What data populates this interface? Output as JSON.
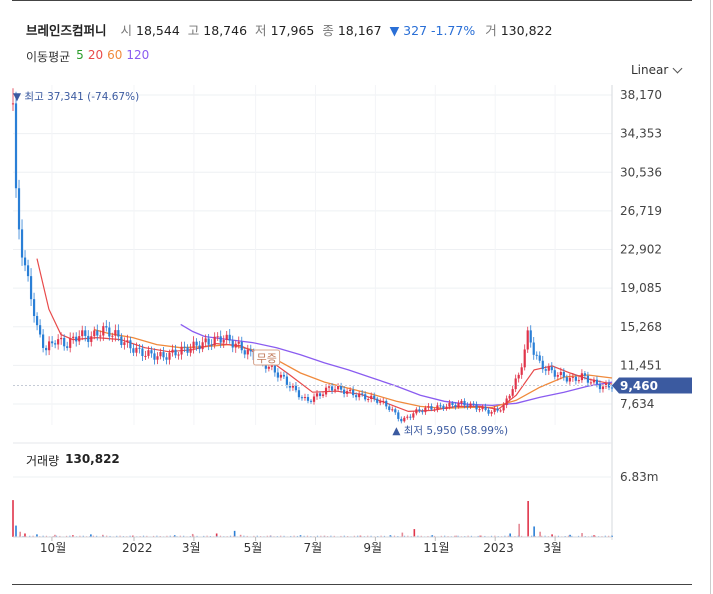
{
  "header": {
    "name": "브레인즈컴퍼니",
    "open_label": "시",
    "open": "18,544",
    "high_label": "고",
    "high": "18,746",
    "low_label": "저",
    "low": "17,965",
    "close_label": "종",
    "close": "18,167",
    "change": "▼ 327 -1.77%",
    "volume_label": "거",
    "volume": "130,822"
  },
  "moving_average": {
    "title": "이동평균",
    "periods": [
      {
        "label": "5",
        "color": "#2a9d2a"
      },
      {
        "label": "20",
        "color": "#e84a4a"
      },
      {
        "label": "60",
        "color": "#f08a3c"
      },
      {
        "label": "120",
        "color": "#8a5cf0"
      }
    ]
  },
  "scale_selector": {
    "value": "Linear",
    "icon": "chevron-down-icon"
  },
  "chart_data": {
    "type": "candlestick",
    "y_ticks": [
      "38,170",
      "34,353",
      "30,536",
      "26,719",
      "22,902",
      "19,085",
      "15,268",
      "11,451",
      "7,634"
    ],
    "y_tick_values": [
      38170,
      34353,
      30536,
      26719,
      22902,
      19085,
      15268,
      11451,
      7634
    ],
    "ylim": [
      5000,
      38170
    ],
    "x_ticks": [
      "10월",
      "2022",
      "3월",
      "5월",
      "7월",
      "9월",
      "11월",
      "2023",
      "3월"
    ],
    "x_tick_positions": [
      0.065,
      0.202,
      0.302,
      0.405,
      0.505,
      0.605,
      0.705,
      0.805,
      0.905
    ],
    "current_price": "9,460",
    "current_value": 9460,
    "high_annotation": "최고 37,341 (-74.67%)",
    "high_value": 37341,
    "low_annotation": "최저 5,950 (58.99%)",
    "low_value": 5950,
    "event_label": "무증",
    "price_series": [
      [
        0.0,
        37341
      ],
      [
        0.005,
        28000
      ],
      [
        0.012,
        24000
      ],
      [
        0.02,
        21000
      ],
      [
        0.03,
        18500
      ],
      [
        0.04,
        15000
      ],
      [
        0.055,
        13000
      ],
      [
        0.07,
        14000
      ],
      [
        0.09,
        13500
      ],
      [
        0.11,
        14500
      ],
      [
        0.13,
        14200
      ],
      [
        0.15,
        15000
      ],
      [
        0.17,
        14500
      ],
      [
        0.19,
        13500
      ],
      [
        0.21,
        12800
      ],
      [
        0.23,
        12500
      ],
      [
        0.25,
        12300
      ],
      [
        0.27,
        12700
      ],
      [
        0.29,
        13100
      ],
      [
        0.31,
        13500
      ],
      [
        0.33,
        13800
      ],
      [
        0.35,
        14200
      ],
      [
        0.37,
        13600
      ],
      [
        0.39,
        12800
      ],
      [
        0.41,
        12000
      ],
      [
        0.43,
        11200
      ],
      [
        0.45,
        10200
      ],
      [
        0.47,
        9000
      ],
      [
        0.49,
        7900
      ],
      [
        0.51,
        8500
      ],
      [
        0.53,
        9300
      ],
      [
        0.55,
        9000
      ],
      [
        0.57,
        8600
      ],
      [
        0.59,
        8300
      ],
      [
        0.61,
        8000
      ],
      [
        0.63,
        7200
      ],
      [
        0.64,
        6500
      ],
      [
        0.65,
        5950
      ],
      [
        0.67,
        6800
      ],
      [
        0.69,
        7200
      ],
      [
        0.71,
        7300
      ],
      [
        0.73,
        7500
      ],
      [
        0.75,
        7700
      ],
      [
        0.77,
        7400
      ],
      [
        0.79,
        7000
      ],
      [
        0.8,
        6800
      ],
      [
        0.82,
        7400
      ],
      [
        0.83,
        8800
      ],
      [
        0.845,
        10500
      ],
      [
        0.86,
        14600
      ],
      [
        0.87,
        12800
      ],
      [
        0.88,
        11500
      ],
      [
        0.9,
        10800
      ],
      [
        0.92,
        10300
      ],
      [
        0.935,
        10000
      ],
      [
        0.95,
        10400
      ],
      [
        0.97,
        9700
      ],
      [
        0.985,
        9300
      ],
      [
        1.0,
        9460
      ]
    ],
    "ma20": [
      [
        0.04,
        22000
      ],
      [
        0.06,
        17000
      ],
      [
        0.08,
        14500
      ],
      [
        0.1,
        14000
      ],
      [
        0.14,
        14200
      ],
      [
        0.18,
        14000
      ],
      [
        0.22,
        13200
      ],
      [
        0.26,
        12800
      ],
      [
        0.3,
        13000
      ],
      [
        0.34,
        13600
      ],
      [
        0.38,
        13400
      ],
      [
        0.42,
        12300
      ],
      [
        0.46,
        10600
      ],
      [
        0.5,
        8800
      ],
      [
        0.54,
        8900
      ],
      [
        0.58,
        8600
      ],
      [
        0.62,
        7800
      ],
      [
        0.66,
        6900
      ],
      [
        0.7,
        7000
      ],
      [
        0.74,
        7400
      ],
      [
        0.78,
        7400
      ],
      [
        0.81,
        7100
      ],
      [
        0.84,
        8500
      ],
      [
        0.87,
        11000
      ],
      [
        0.9,
        11400
      ],
      [
        0.93,
        10700
      ],
      [
        0.96,
        10100
      ],
      [
        1.0,
        9600
      ]
    ],
    "ma60": [
      [
        0.135,
        15000
      ],
      [
        0.16,
        14600
      ],
      [
        0.2,
        14200
      ],
      [
        0.24,
        13500
      ],
      [
        0.28,
        13200
      ],
      [
        0.32,
        13300
      ],
      [
        0.36,
        13500
      ],
      [
        0.4,
        13000
      ],
      [
        0.44,
        12000
      ],
      [
        0.48,
        10700
      ],
      [
        0.52,
        9800
      ],
      [
        0.56,
        9200
      ],
      [
        0.6,
        8600
      ],
      [
        0.64,
        7900
      ],
      [
        0.68,
        7400
      ],
      [
        0.72,
        7200
      ],
      [
        0.76,
        7300
      ],
      [
        0.8,
        7300
      ],
      [
        0.84,
        8000
      ],
      [
        0.88,
        9300
      ],
      [
        0.92,
        10300
      ],
      [
        0.96,
        10500
      ],
      [
        1.0,
        10200
      ]
    ],
    "ma120": [
      [
        0.28,
        15500
      ],
      [
        0.3,
        14800
      ],
      [
        0.32,
        14300
      ],
      [
        0.36,
        14000
      ],
      [
        0.4,
        13700
      ],
      [
        0.44,
        13200
      ],
      [
        0.48,
        12500
      ],
      [
        0.52,
        11700
      ],
      [
        0.56,
        11000
      ],
      [
        0.6,
        10200
      ],
      [
        0.64,
        9400
      ],
      [
        0.68,
        8500
      ],
      [
        0.72,
        7900
      ],
      [
        0.76,
        7600
      ],
      [
        0.8,
        7500
      ],
      [
        0.84,
        7700
      ],
      [
        0.88,
        8300
      ],
      [
        0.92,
        8800
      ],
      [
        0.96,
        9400
      ],
      [
        1.0,
        9800
      ]
    ],
    "volume": {
      "title": "거래량",
      "value": "130,822",
      "max_tick": "6.83m",
      "max": 6830000,
      "bars": [
        [
          0.0,
          4200000
        ],
        [
          0.005,
          1300000
        ],
        [
          0.012,
          600000
        ],
        [
          0.02,
          400000
        ],
        [
          0.04,
          300000
        ],
        [
          0.07,
          250000
        ],
        [
          0.1,
          200000
        ],
        [
          0.13,
          300000
        ],
        [
          0.15,
          250000
        ],
        [
          0.2,
          150000
        ],
        [
          0.27,
          200000
        ],
        [
          0.3,
          350000
        ],
        [
          0.34,
          400000
        ],
        [
          0.37,
          700000
        ],
        [
          0.38,
          250000
        ],
        [
          0.43,
          150000
        ],
        [
          0.48,
          200000
        ],
        [
          0.52,
          150000
        ],
        [
          0.58,
          150000
        ],
        [
          0.63,
          200000
        ],
        [
          0.65,
          500000
        ],
        [
          0.67,
          900000
        ],
        [
          0.7,
          200000
        ],
        [
          0.74,
          150000
        ],
        [
          0.78,
          150000
        ],
        [
          0.83,
          400000
        ],
        [
          0.845,
          1500000
        ],
        [
          0.86,
          4100000
        ],
        [
          0.87,
          1200000
        ],
        [
          0.88,
          600000
        ],
        [
          0.9,
          300000
        ],
        [
          0.93,
          250000
        ],
        [
          0.95,
          450000
        ],
        [
          0.97,
          200000
        ],
        [
          1.0,
          150000
        ]
      ]
    },
    "colors": {
      "up": "#e0344a",
      "down": "#2a7fd6",
      "ma5": "#2a9d2a",
      "ma20": "#e84a4a",
      "ma60": "#f08a3c",
      "ma120": "#8a5cf0",
      "badge": "#3b5aa0"
    }
  }
}
